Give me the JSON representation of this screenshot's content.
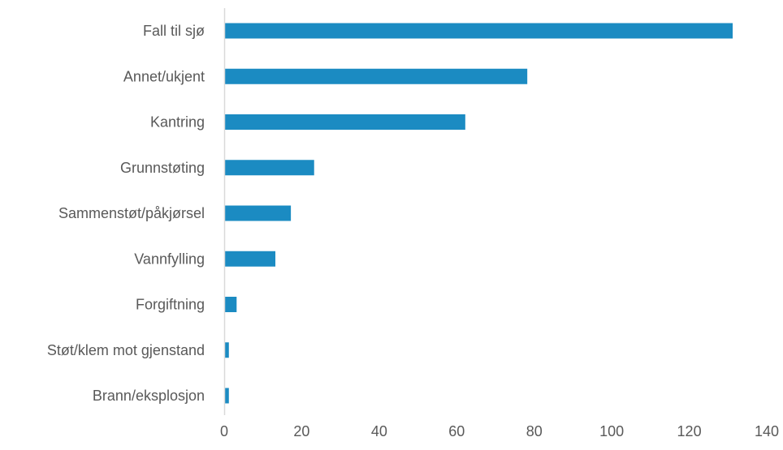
{
  "chart_data": {
    "type": "bar",
    "orientation": "horizontal",
    "title": "",
    "xlabel": "",
    "ylabel": "",
    "categories": [
      "Fall til sjø",
      "Annet/ukjent",
      "Kantring",
      "Grunnstøting",
      "Sammenstøt/påkjørsel",
      "Vannfylling",
      "Forgiftning",
      "Støt/klem mot gjenstand",
      "Brann/eksplosjon"
    ],
    "values": [
      131,
      78,
      62,
      23,
      17,
      13,
      3,
      1,
      1
    ],
    "xlim": [
      0,
      140
    ],
    "xticks": [
      0,
      20,
      40,
      60,
      80,
      100,
      120,
      140
    ],
    "grid": false,
    "legend": "none",
    "bar_color": "#1B8BC2",
    "axis_color": "#D9D9D9",
    "text_color": "#595959"
  }
}
